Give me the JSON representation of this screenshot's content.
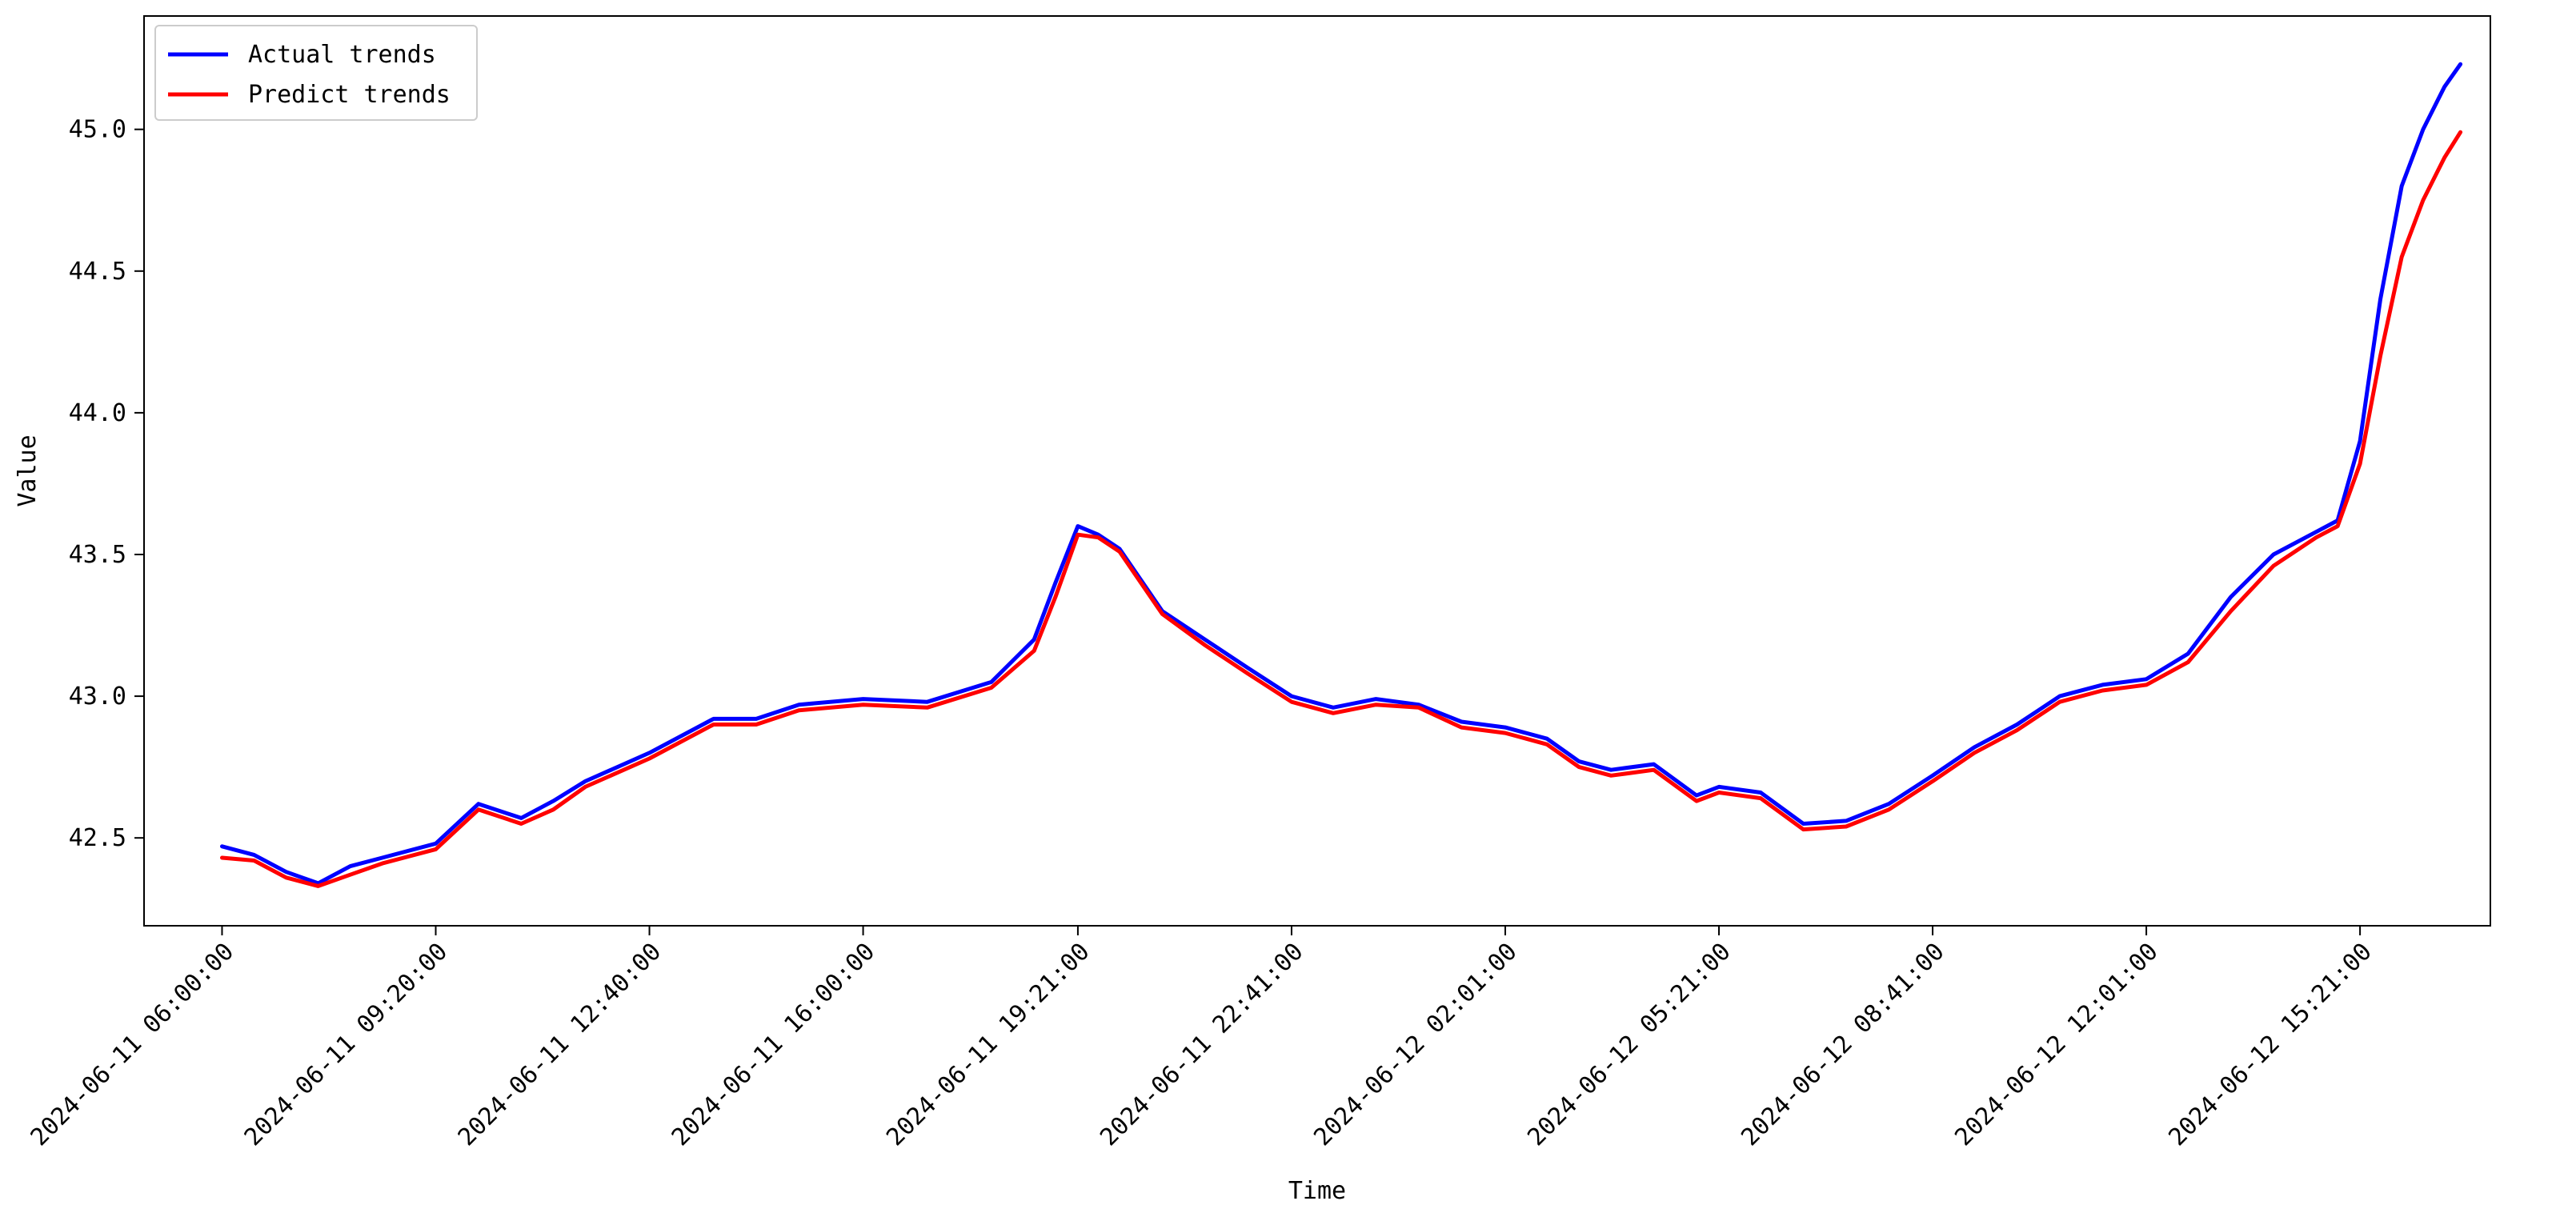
{
  "chart_data": {
    "type": "line",
    "title": "",
    "xlabel": "Time",
    "ylabel": "Value",
    "ylim": [
      42.19,
      45.4
    ],
    "xlim": [
      "2024-06-11 04:47:00",
      "2024-06-12 17:23:00"
    ],
    "grid": false,
    "legend_position": "top-left",
    "x_ticks": [
      "2024-06-11 06:00:00",
      "2024-06-11 09:20:00",
      "2024-06-11 12:40:00",
      "2024-06-11 16:00:00",
      "2024-06-11 19:21:00",
      "2024-06-11 22:41:00",
      "2024-06-12 02:01:00",
      "2024-06-12 05:21:00",
      "2024-06-12 08:41:00",
      "2024-06-12 12:01:00",
      "2024-06-12 15:21:00"
    ],
    "y_ticks": [
      "42.5",
      "43.0",
      "43.5",
      "44.0",
      "44.5",
      "45.0"
    ],
    "series": [
      {
        "name": "Actual trends",
        "color": "#0000ff",
        "x": [
          "2024-06-11 06:00:00",
          "2024-06-11 06:30:00",
          "2024-06-11 07:00:00",
          "2024-06-11 07:30:00",
          "2024-06-11 08:00:00",
          "2024-06-11 08:30:00",
          "2024-06-11 09:20:00",
          "2024-06-11 10:00:00",
          "2024-06-11 10:40:00",
          "2024-06-11 11:10:00",
          "2024-06-11 11:40:00",
          "2024-06-11 12:40:00",
          "2024-06-11 13:40:00",
          "2024-06-11 14:20:00",
          "2024-06-11 15:00:00",
          "2024-06-11 16:00:00",
          "2024-06-11 17:00:00",
          "2024-06-11 18:00:00",
          "2024-06-11 18:40:00",
          "2024-06-11 19:00:00",
          "2024-06-11 19:21:00",
          "2024-06-11 19:40:00",
          "2024-06-11 20:00:00",
          "2024-06-11 20:40:00",
          "2024-06-11 21:20:00",
          "2024-06-11 22:00:00",
          "2024-06-11 22:41:00",
          "2024-06-11 23:20:00",
          "2024-06-12 00:00:00",
          "2024-06-12 00:40:00",
          "2024-06-12 01:20:00",
          "2024-06-12 02:01:00",
          "2024-06-12 02:40:00",
          "2024-06-12 03:10:00",
          "2024-06-12 03:40:00",
          "2024-06-12 04:20:00",
          "2024-06-12 05:00:00",
          "2024-06-12 05:21:00",
          "2024-06-12 06:00:00",
          "2024-06-12 06:40:00",
          "2024-06-12 07:20:00",
          "2024-06-12 08:00:00",
          "2024-06-12 08:41:00",
          "2024-06-12 09:20:00",
          "2024-06-12 10:00:00",
          "2024-06-12 10:40:00",
          "2024-06-12 11:20:00",
          "2024-06-12 12:01:00",
          "2024-06-12 12:40:00",
          "2024-06-12 13:20:00",
          "2024-06-12 14:00:00",
          "2024-06-12 14:40:00",
          "2024-06-12 15:00:00",
          "2024-06-12 15:21:00",
          "2024-06-12 15:40:00",
          "2024-06-12 16:00:00",
          "2024-06-12 16:20:00",
          "2024-06-12 16:40:00",
          "2024-06-12 16:55:00"
        ],
        "values": [
          42.47,
          42.44,
          42.38,
          42.34,
          42.4,
          42.43,
          42.48,
          42.62,
          42.57,
          42.63,
          42.7,
          42.8,
          42.92,
          42.92,
          42.97,
          42.99,
          42.98,
          43.05,
          43.2,
          43.4,
          43.6,
          43.57,
          43.52,
          43.3,
          43.2,
          43.1,
          43.0,
          42.96,
          42.99,
          42.97,
          42.91,
          42.89,
          42.85,
          42.77,
          42.74,
          42.76,
          42.65,
          42.68,
          42.66,
          42.55,
          42.56,
          42.62,
          42.72,
          42.82,
          42.9,
          43.0,
          43.04,
          43.06,
          43.15,
          43.35,
          43.5,
          43.58,
          43.62,
          43.9,
          44.4,
          44.8,
          45.0,
          45.15,
          45.23
        ]
      },
      {
        "name": "Predict trends",
        "color": "#ff0000",
        "x": [
          "2024-06-11 06:00:00",
          "2024-06-11 06:30:00",
          "2024-06-11 07:00:00",
          "2024-06-11 07:30:00",
          "2024-06-11 08:00:00",
          "2024-06-11 08:30:00",
          "2024-06-11 09:20:00",
          "2024-06-11 10:00:00",
          "2024-06-11 10:40:00",
          "2024-06-11 11:10:00",
          "2024-06-11 11:40:00",
          "2024-06-11 12:40:00",
          "2024-06-11 13:40:00",
          "2024-06-11 14:20:00",
          "2024-06-11 15:00:00",
          "2024-06-11 16:00:00",
          "2024-06-11 17:00:00",
          "2024-06-11 18:00:00",
          "2024-06-11 18:40:00",
          "2024-06-11 19:00:00",
          "2024-06-11 19:21:00",
          "2024-06-11 19:40:00",
          "2024-06-11 20:00:00",
          "2024-06-11 20:40:00",
          "2024-06-11 21:20:00",
          "2024-06-11 22:00:00",
          "2024-06-11 22:41:00",
          "2024-06-11 23:20:00",
          "2024-06-12 00:00:00",
          "2024-06-12 00:40:00",
          "2024-06-12 01:20:00",
          "2024-06-12 02:01:00",
          "2024-06-12 02:40:00",
          "2024-06-12 03:10:00",
          "2024-06-12 03:40:00",
          "2024-06-12 04:20:00",
          "2024-06-12 05:00:00",
          "2024-06-12 05:21:00",
          "2024-06-12 06:00:00",
          "2024-06-12 06:40:00",
          "2024-06-12 07:20:00",
          "2024-06-12 08:00:00",
          "2024-06-12 08:41:00",
          "2024-06-12 09:20:00",
          "2024-06-12 10:00:00",
          "2024-06-12 10:40:00",
          "2024-06-12 11:20:00",
          "2024-06-12 12:01:00",
          "2024-06-12 12:40:00",
          "2024-06-12 13:20:00",
          "2024-06-12 14:00:00",
          "2024-06-12 14:40:00",
          "2024-06-12 15:00:00",
          "2024-06-12 15:21:00",
          "2024-06-12 15:40:00",
          "2024-06-12 16:00:00",
          "2024-06-12 16:20:00",
          "2024-06-12 16:40:00",
          "2024-06-12 16:55:00"
        ],
        "values": [
          42.43,
          42.42,
          42.36,
          42.33,
          42.37,
          42.41,
          42.46,
          42.6,
          42.55,
          42.6,
          42.68,
          42.78,
          42.9,
          42.9,
          42.95,
          42.97,
          42.96,
          43.03,
          43.16,
          43.35,
          43.57,
          43.56,
          43.51,
          43.29,
          43.18,
          43.08,
          42.98,
          42.94,
          42.97,
          42.96,
          42.89,
          42.87,
          42.83,
          42.75,
          42.72,
          42.74,
          42.63,
          42.66,
          42.64,
          42.53,
          42.54,
          42.6,
          42.7,
          42.8,
          42.88,
          42.98,
          43.02,
          43.04,
          43.12,
          43.3,
          43.46,
          43.56,
          43.6,
          43.82,
          44.2,
          44.55,
          44.75,
          44.9,
          44.99
        ]
      }
    ]
  }
}
